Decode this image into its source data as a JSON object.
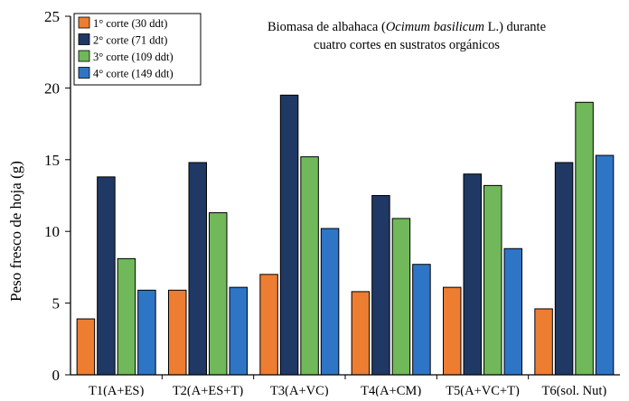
{
  "chart_data": {
    "type": "bar",
    "title_parts": [
      "Biomasa de albahaca (",
      "Ocimum basilicum",
      " L.) durante"
    ],
    "subtitle": "cuatro cortes en sustratos orgánicos",
    "xlabel": "",
    "ylabel": "Peso fresco de hoja (g)",
    "ylim": [
      0,
      25
    ],
    "yticks": [
      0,
      5,
      10,
      15,
      20,
      25
    ],
    "grid": false,
    "legend_position": "top-left",
    "categories": [
      "T1(A+ES)",
      "T2(A+ES+T)",
      "T3(A+VC)",
      "T4(A+CM)",
      "T5(A+VC+T)",
      "T6(sol. Nut)"
    ],
    "series": [
      {
        "name": "1° corte (30 ddt)",
        "color": "#ED7D31",
        "values": [
          3.9,
          5.9,
          7.0,
          5.8,
          6.1,
          4.6
        ]
      },
      {
        "name": "2° corte (71 ddt)",
        "color": "#203864",
        "values": [
          13.8,
          14.8,
          19.5,
          12.5,
          14.0,
          14.8
        ]
      },
      {
        "name": "3° corte (109 ddt)",
        "color": "#70B85A",
        "values": [
          8.1,
          11.3,
          15.2,
          10.9,
          13.2,
          19.0
        ]
      },
      {
        "name": "4° corte (149 ddt)",
        "color": "#2E75C6",
        "values": [
          5.9,
          6.1,
          10.2,
          7.7,
          8.8,
          15.3
        ]
      }
    ]
  }
}
